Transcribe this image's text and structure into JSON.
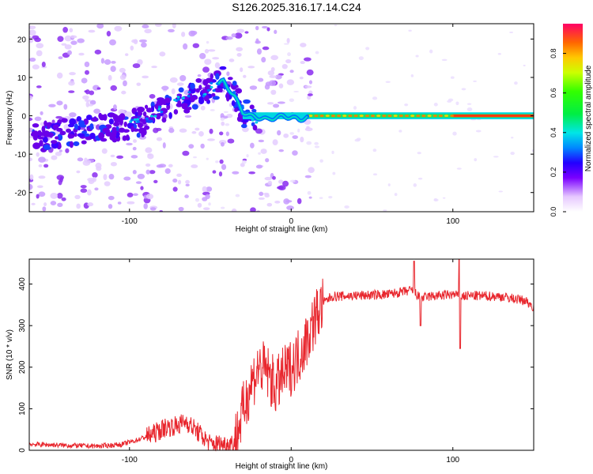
{
  "title": "S126.2025.316.17.14.C24",
  "colors": {
    "axis": "#000000",
    "snr_line": "#e8262d",
    "background": "#ffffff"
  },
  "chart_data": [
    {
      "type": "heatmap",
      "xlabel": "Height of straight line (km)",
      "ylabel": "Frequency (Hz)",
      "xlim": [
        -162,
        150
      ],
      "ylim": [
        -25,
        24
      ],
      "xticks": [
        -100,
        0,
        100
      ],
      "yticks": [
        -20,
        -10,
        0,
        10,
        20
      ],
      "ridge": [
        {
          "x": -160,
          "y": -6
        },
        {
          "x": -130,
          "y": -4
        },
        {
          "x": -110,
          "y": -3
        },
        {
          "x": -95,
          "y": -2
        },
        {
          "x": -85,
          "y": 0
        },
        {
          "x": -75,
          "y": 3
        },
        {
          "x": -62,
          "y": 5
        },
        {
          "x": -52,
          "y": 7
        },
        {
          "x": -42,
          "y": 9
        },
        {
          "x": -35,
          "y": 5
        },
        {
          "x": -30,
          "y": 1
        },
        {
          "x": -25,
          "y": 0
        },
        {
          "x": -15,
          "y": -1
        },
        {
          "x": -5,
          "y": 0
        },
        {
          "x": 5,
          "y": -1
        },
        {
          "x": 15,
          "y": 0
        },
        {
          "x": 60,
          "y": 0
        },
        {
          "x": 100,
          "y": 0
        },
        {
          "x": 150,
          "y": 0
        }
      ],
      "colorbar": {
        "label": "Normalized spectral amplitude",
        "range": [
          0,
          0.95
        ],
        "ticks": [
          "0.0",
          "0.2",
          "0.4",
          "0.6",
          "0.8"
        ]
      }
    },
    {
      "type": "line",
      "xlabel": "Height of straight line (km)",
      "ylabel": "SNR (10 * v/v)",
      "xlim": [
        -162,
        150
      ],
      "ylim": [
        0,
        460
      ],
      "xticks": [
        -100,
        0,
        100
      ],
      "yticks": [
        0,
        100,
        200,
        300,
        400
      ],
      "series": [
        {
          "name": "SNR",
          "x": [
            -162,
            -140,
            -120,
            -105,
            -95,
            -85,
            -78,
            -70,
            -65,
            -58,
            -50,
            -40,
            -35,
            -30,
            -25,
            -20,
            -15,
            -10,
            -5,
            0,
            5,
            10,
            15,
            20,
            25,
            40,
            60,
            75,
            80,
            85,
            100,
            105,
            110,
            130,
            145,
            150
          ],
          "values": [
            15,
            12,
            10,
            14,
            25,
            40,
            55,
            60,
            70,
            45,
            15,
            15,
            20,
            90,
            160,
            200,
            190,
            150,
            180,
            200,
            230,
            270,
            320,
            355,
            370,
            372,
            375,
            385,
            365,
            370,
            375,
            370,
            372,
            370,
            360,
            345
          ],
          "color": "#e8262d"
        }
      ]
    }
  ]
}
